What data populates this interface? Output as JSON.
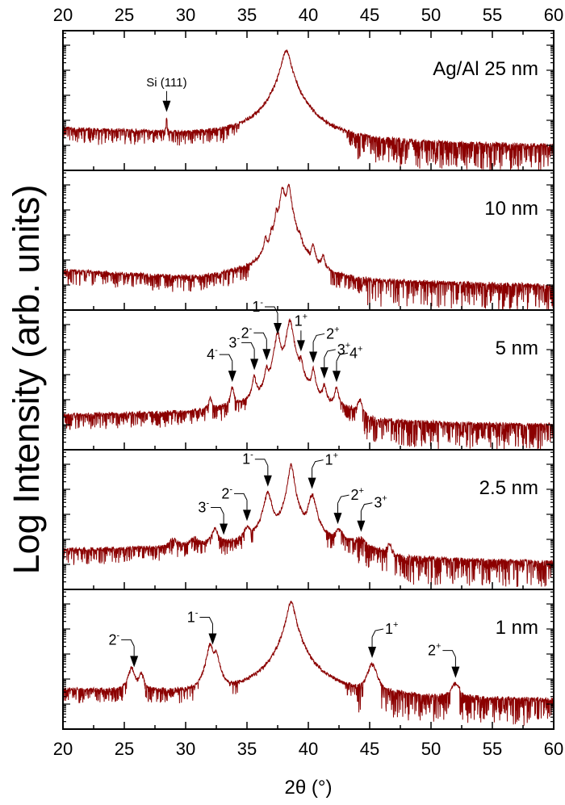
{
  "chart_data": {
    "type": "line",
    "xlabel": "2θ (°)",
    "ylabel": "Log Intensity (arb. units)",
    "xlim": [
      20,
      60
    ],
    "xticks": [
      20,
      25,
      30,
      35,
      40,
      45,
      50,
      55,
      60
    ],
    "yscale": "log",
    "y_units_note_hidden": null,
    "line_color": "#8b0000",
    "panels": [
      {
        "label": "Ag/Al 25 nm",
        "baseline": [
          [
            20,
            1.7
          ],
          [
            30,
            1.5
          ],
          [
            35,
            1.5
          ],
          [
            42,
            1.2
          ],
          [
            60,
            1.0
          ]
        ],
        "peaks": [
          {
            "x": 38.2,
            "h": 4.8,
            "w": 0.35
          },
          {
            "x": 28.45,
            "h": 2.0,
            "w": 0.05
          }
        ],
        "annotations": [
          {
            "text": "Si (111)",
            "sup": "",
            "x": 28.45,
            "style": "straight"
          }
        ]
      },
      {
        "label": "10 nm",
        "baseline": [
          [
            20,
            1.6
          ],
          [
            31,
            1.3
          ],
          [
            35,
            1.5
          ],
          [
            42,
            1.2
          ],
          [
            60,
            1.0
          ]
        ],
        "peaks": [
          {
            "x": 37.9,
            "h": 4.9,
            "w": 0.18
          },
          {
            "x": 38.4,
            "h": 5.0,
            "w": 0.18
          },
          {
            "x": 37.4,
            "h": 3.9,
            "w": 0.12
          },
          {
            "x": 37.0,
            "h": 3.0,
            "w": 0.12
          },
          {
            "x": 36.5,
            "h": 2.8,
            "w": 0.12
          },
          {
            "x": 39.3,
            "h": 2.7,
            "w": 0.12
          },
          {
            "x": 40.4,
            "h": 2.5,
            "w": 0.15
          },
          {
            "x": 41.2,
            "h": 2.1,
            "w": 0.15
          }
        ],
        "annotations": []
      },
      {
        "label": "5 nm",
        "baseline": [
          [
            20,
            1.4
          ],
          [
            30,
            1.5
          ],
          [
            34,
            1.7
          ],
          [
            44,
            1.5
          ],
          [
            45,
            1.1
          ],
          [
            60,
            1.0
          ]
        ],
        "peaks": [
          {
            "x": 38.5,
            "h": 5.2,
            "w": 0.22
          },
          {
            "x": 37.5,
            "h": 4.7,
            "w": 0.2
          },
          {
            "x": 36.6,
            "h": 3.2,
            "w": 0.13
          },
          {
            "x": 35.6,
            "h": 2.9,
            "w": 0.15
          },
          {
            "x": 33.8,
            "h": 2.4,
            "w": 0.15
          },
          {
            "x": 32.0,
            "h": 1.9,
            "w": 0.15
          },
          {
            "x": 39.4,
            "h": 3.5,
            "w": 0.13
          },
          {
            "x": 40.4,
            "h": 3.2,
            "w": 0.15
          },
          {
            "x": 41.3,
            "h": 2.5,
            "w": 0.15
          },
          {
            "x": 42.3,
            "h": 2.4,
            "w": 0.18
          },
          {
            "x": 44.2,
            "h": 1.8,
            "w": 0.2
          }
        ],
        "annotations": [
          {
            "text": "4",
            "sup": "-",
            "x": 33.8,
            "style": "left"
          },
          {
            "text": "3",
            "sup": "-",
            "x": 35.6,
            "style": "left"
          },
          {
            "text": "2",
            "sup": "-",
            "x": 36.6,
            "style": "left"
          },
          {
            "text": "1",
            "sup": "-",
            "x": 37.5,
            "style": "left"
          },
          {
            "text": "1",
            "sup": "+",
            "x": 39.4,
            "style": "straight-right"
          },
          {
            "text": "2",
            "sup": "+",
            "x": 40.4,
            "style": "right"
          },
          {
            "text": "3",
            "sup": "+",
            "x": 41.3,
            "style": "right"
          },
          {
            "text": "4",
            "sup": "+",
            "x": 42.3,
            "style": "right"
          }
        ]
      },
      {
        "label": "2.5 nm",
        "baseline": [
          [
            20,
            1.6
          ],
          [
            28,
            1.7
          ],
          [
            34,
            1.9
          ],
          [
            37,
            2.1
          ],
          [
            44,
            1.9
          ],
          [
            47,
            1.3
          ],
          [
            60,
            1.1
          ]
        ],
        "peaks": [
          {
            "x": 38.6,
            "h": 5.0,
            "w": 0.2
          },
          {
            "x": 36.7,
            "h": 3.9,
            "w": 0.28
          },
          {
            "x": 40.3,
            "h": 3.8,
            "w": 0.28
          },
          {
            "x": 35.0,
            "h": 2.3,
            "w": 0.3
          },
          {
            "x": 32.4,
            "h": 2.3,
            "w": 0.3
          },
          {
            "x": 30.7,
            "h": 1.8,
            "w": 0.35
          },
          {
            "x": 29.0,
            "h": 1.7,
            "w": 0.4
          },
          {
            "x": 42.5,
            "h": 2.2,
            "w": 0.35
          },
          {
            "x": 44.3,
            "h": 1.7,
            "w": 0.35
          },
          {
            "x": 46.6,
            "h": 1.6,
            "w": 0.3
          }
        ],
        "annotations": [
          {
            "text": "3",
            "sup": "-",
            "x": 33.1,
            "style": "left"
          },
          {
            "text": "2",
            "sup": "-",
            "x": 35.0,
            "style": "left"
          },
          {
            "text": "1",
            "sup": "-",
            "x": 36.7,
            "style": "left"
          },
          {
            "text": "1",
            "sup": "+",
            "x": 40.3,
            "style": "right"
          },
          {
            "text": "2",
            "sup": "+",
            "x": 42.4,
            "style": "right"
          },
          {
            "text": "3",
            "sup": "+",
            "x": 44.3,
            "style": "right"
          }
        ]
      },
      {
        "label": "1 nm",
        "baseline": [
          [
            20,
            1.6
          ],
          [
            35,
            1.5
          ],
          [
            45,
            1.5
          ],
          [
            50,
            1.3
          ],
          [
            60,
            1.2
          ]
        ],
        "peaks": [
          {
            "x": 38.6,
            "h": 5.1,
            "w": 0.3
          },
          {
            "x": 32.0,
            "h": 3.4,
            "w": 0.25
          },
          {
            "x": 32.5,
            "h": 3.0,
            "w": 0.25
          },
          {
            "x": 25.6,
            "h": 2.4,
            "w": 0.3
          },
          {
            "x": 26.4,
            "h": 2.1,
            "w": 0.25
          },
          {
            "x": 45.2,
            "h": 2.6,
            "w": 0.35
          },
          {
            "x": 52.0,
            "h": 1.7,
            "w": 0.4
          }
        ],
        "annotations": [
          {
            "text": "2",
            "sup": "-",
            "x": 25.8,
            "style": "left"
          },
          {
            "text": "1",
            "sup": "-",
            "x": 32.2,
            "style": "left"
          },
          {
            "text": "1",
            "sup": "+",
            "x": 45.2,
            "style": "right"
          },
          {
            "text": "2",
            "sup": "+",
            "x": 52.0,
            "style": "left"
          }
        ]
      }
    ]
  }
}
